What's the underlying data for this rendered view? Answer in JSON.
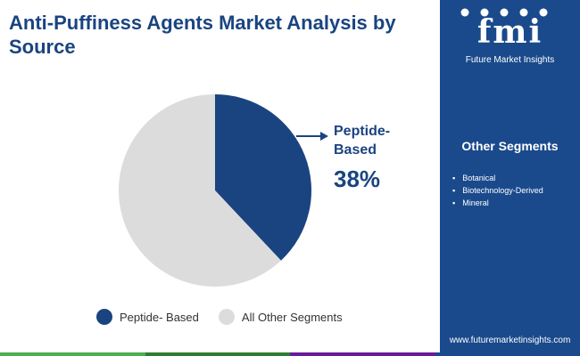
{
  "title": "Anti-Puffiness Agents Market Analysis by Source",
  "chart_data": {
    "type": "pie",
    "slices": [
      {
        "label": "Peptide- Based",
        "value": 38,
        "color": "#1a4480"
      },
      {
        "label": "All Other Segments",
        "value": 62,
        "color": "#dcdcdc"
      }
    ],
    "callout": {
      "label_line1": "Peptide-",
      "label_line2": "Based",
      "value_text": "38%"
    },
    "legend": [
      "Peptide- Based",
      "All Other Segments"
    ]
  },
  "sidebar": {
    "brand": "fmi",
    "brand_sub": "Future Market Insights",
    "heading": "Other Segments",
    "items": [
      "Botanical",
      "Biotechnology-Derived",
      "Mineral"
    ],
    "website": "www.futuremarketinsights.com",
    "background_color": "#1a4a8c"
  },
  "bottom_bar_colors": [
    "#4caf50",
    "#2e7d32",
    "#6a1b9a",
    "#1a4a8c"
  ]
}
